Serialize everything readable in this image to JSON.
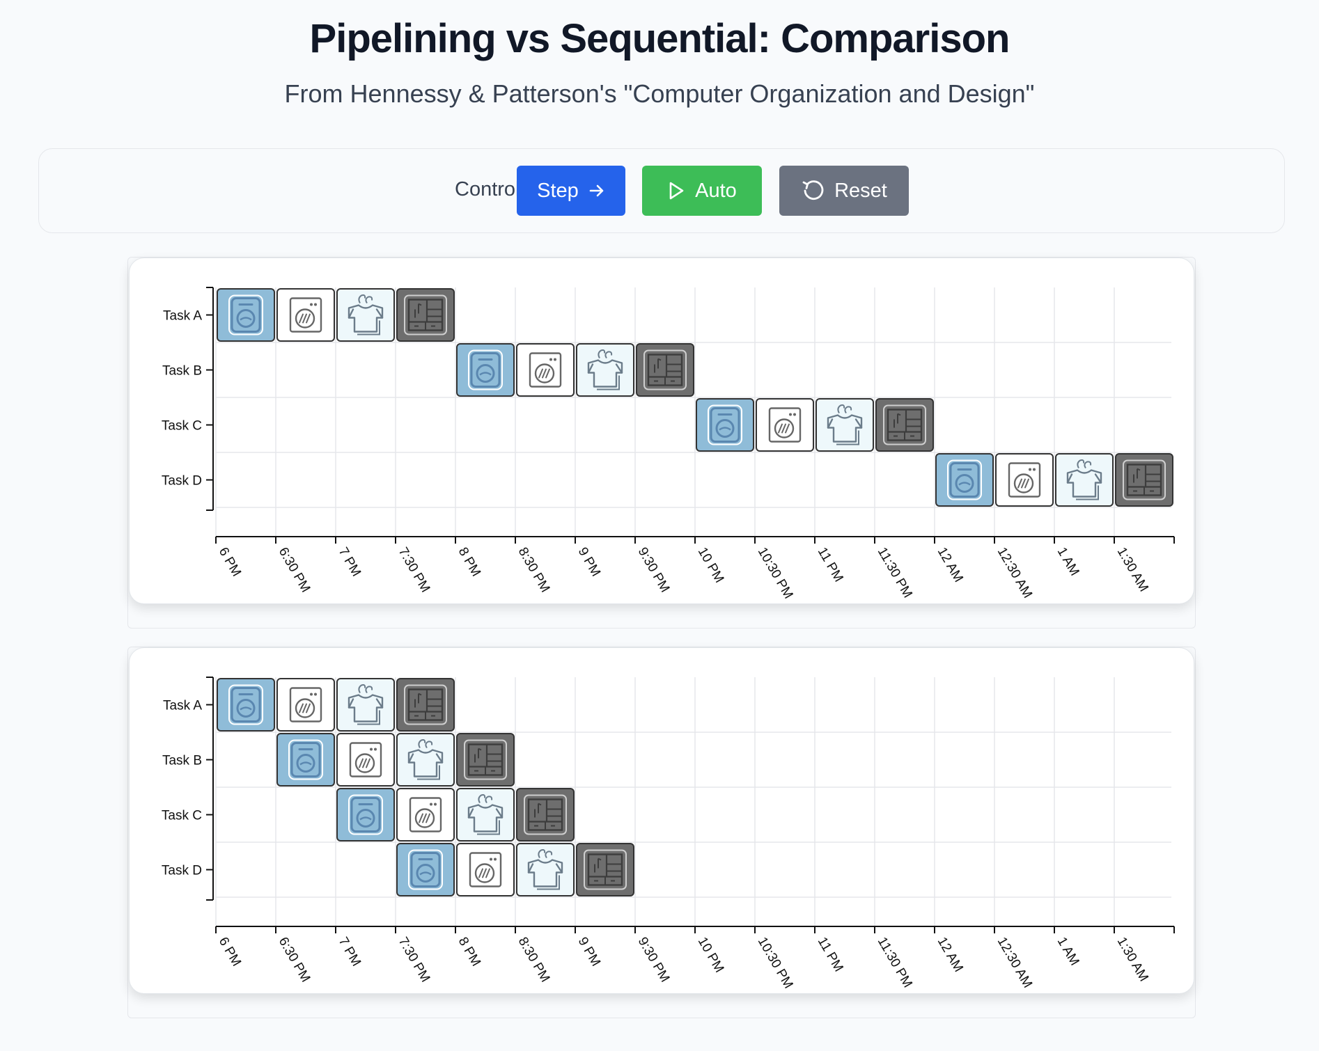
{
  "header": {
    "title": "Pipelining vs Sequential: Comparison",
    "subtitle": "From Hennessy & Patterson's \"Computer Organization and Design\""
  },
  "controls": {
    "label": "Controls:",
    "step_label": "Step",
    "auto_label": "Auto",
    "reset_label": "Reset",
    "step_color": "#2563eb",
    "auto_color": "#3dbd57",
    "reset_color": "#6b7280"
  },
  "stage_styles": {
    "wash": {
      "icon": "washer-icon",
      "fill": "#8fbcd8",
      "stroke": "#5a87b0"
    },
    "dry": {
      "icon": "dryer-icon",
      "fill": "#ffffff",
      "stroke": "#555555"
    },
    "fold": {
      "icon": "folded-shirt-icon",
      "fill": "#eef8fb",
      "stroke": "#6b7c8a"
    },
    "store": {
      "icon": "closet-icon",
      "fill": "#6e6e6e",
      "stroke": "#444444"
    }
  },
  "chart_data": [
    {
      "type": "gantt",
      "mode": "sequential",
      "tasks": [
        "Task A",
        "Task B",
        "Task C",
        "Task D"
      ],
      "time_ticks": [
        "6 PM",
        "6:30 PM",
        "7 PM",
        "7:30 PM",
        "8 PM",
        "8:30 PM",
        "9 PM",
        "9:30 PM",
        "10 PM",
        "10:30 PM",
        "11 PM",
        "11:30 PM",
        "12 AM",
        "12:30 AM",
        "1 AM",
        "1:30 AM"
      ],
      "stages": [
        "wash",
        "dry",
        "fold",
        "store"
      ],
      "stage_duration_slots": 1,
      "task_start_slots": [
        0,
        4,
        8,
        12
      ],
      "grid": true
    },
    {
      "type": "gantt",
      "mode": "pipelined",
      "tasks": [
        "Task A",
        "Task B",
        "Task C",
        "Task D"
      ],
      "time_ticks": [
        "6 PM",
        "6:30 PM",
        "7 PM",
        "7:30 PM",
        "8 PM",
        "8:30 PM",
        "9 PM",
        "9:30 PM",
        "10 PM",
        "10:30 PM",
        "11 PM",
        "11:30 PM",
        "12 AM",
        "12:30 AM",
        "1 AM",
        "1:30 AM"
      ],
      "stages": [
        "wash",
        "dry",
        "fold",
        "store"
      ],
      "stage_duration_slots": 1,
      "task_start_slots": [
        0,
        1,
        2,
        3
      ],
      "grid": true
    }
  ]
}
